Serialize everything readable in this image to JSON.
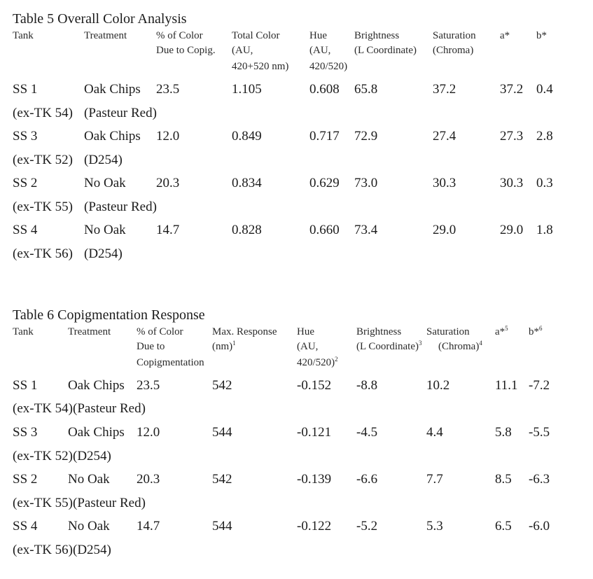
{
  "table5": {
    "title": "Table 5  Overall Color Analysis",
    "headers": {
      "tank": "Tank",
      "treatment": "Treatment",
      "pct1": "% of Color",
      "pct2": "Due to Copig.",
      "total1": "Total Color",
      "total2": "(AU,",
      "total3": "420+520 nm)",
      "hue1": "Hue",
      "hue2": "(AU,",
      "hue3": "420/520)",
      "bright1": "Brightness",
      "bright2": "(L Coordinate)",
      "sat1": "Saturation",
      "sat2": "(Chroma)",
      "a": "a*",
      "b": "b*"
    },
    "rows": [
      {
        "tank": "SS 1",
        "treatment": "Oak Chips",
        "pct": "23.5",
        "total": "1.105",
        "hue": "0.608",
        "bright": "65.8",
        "sat": "37.2",
        "a": "37.2",
        "b": "0.4",
        "tank2": "(ex-TK 54)",
        "treatment2": "(Pasteur Red)"
      },
      {
        "tank": "SS 3",
        "treatment": "Oak Chips",
        "pct": "12.0",
        "total": "0.849",
        "hue": "0.717",
        "bright": "72.9",
        "sat": "27.4",
        "a": "27.3",
        "b": "2.8",
        "tank2": "(ex-TK 52)",
        "treatment2": "(D254)"
      },
      {
        "tank": "SS 2",
        "treatment": "No Oak",
        "pct": "20.3",
        "total": "0.834",
        "hue": "0.629",
        "bright": "73.0",
        "sat": "30.3",
        "a": "30.3",
        "b": "0.3",
        "tank2": "(ex-TK 55)",
        "treatment2": "(Pasteur Red)"
      },
      {
        "tank": "SS 4",
        "treatment": "No Oak",
        "pct": "14.7",
        "total": "0.828",
        "hue": "0.660",
        "bright": "73.4",
        "sat": "29.0",
        "a": "29.0",
        "b": "1.8",
        "tank2": "(ex-TK 56)",
        "treatment2": "(D254)"
      }
    ]
  },
  "table6": {
    "title": "Table 6  Copigmentation Response",
    "headers": {
      "tank": "Tank",
      "treatment": "Treatment",
      "pct1": "% of Color",
      "pct2": "Due to",
      "pct3": "Copigmentation",
      "max1": "Max. Response",
      "max2": "(nm)",
      "max2_sup": "1",
      "hue1": "Hue",
      "hue2": "(AU,",
      "hue3": "420/520)",
      "hue3_sup": "2",
      "bright1": "Brightness",
      "bright2": "(L Coordinate)",
      "bright2_sup": "3",
      "sat1": "Saturation",
      "sat2": "(Chroma)",
      "sat2_sup": "4",
      "a": "a*",
      "a_sup": "5",
      "b": "b*",
      "b_sup": "6"
    },
    "rows": [
      {
        "tank": "SS 1",
        "treatment": "Oak Chips",
        "pct": "23.5",
        "max": "542",
        "hue": "-0.152",
        "bright": "-8.8",
        "sat": "10.2",
        "a": "11.1",
        "b": "-7.2",
        "line2": "(ex-TK 54)(Pasteur Red)"
      },
      {
        "tank": "SS 3",
        "treatment": "Oak Chips",
        "pct": "12.0",
        "max": "544",
        "hue": "-0.121",
        "bright": "-4.5",
        "sat": "4.4",
        "a": "5.8",
        "b": "-5.5",
        "line2": "(ex-TK 52)(D254)"
      },
      {
        "tank": "SS 2",
        "treatment": "No Oak",
        "pct": "20.3",
        "max": "542",
        "hue": "-0.139",
        "bright": "-6.6",
        "sat": "7.7",
        "a": "8.5",
        "b": "-6.3",
        "line2": "(ex-TK 55)(Pasteur Red)"
      },
      {
        "tank": "SS 4",
        "treatment": "No Oak",
        "pct": "14.7",
        "max": "544",
        "hue": "-0.122",
        "bright": "-5.2",
        "sat": "5.3",
        "a": "6.5",
        "b": "-6.0",
        "line2": "(ex-TK 56)(D254)"
      }
    ]
  }
}
